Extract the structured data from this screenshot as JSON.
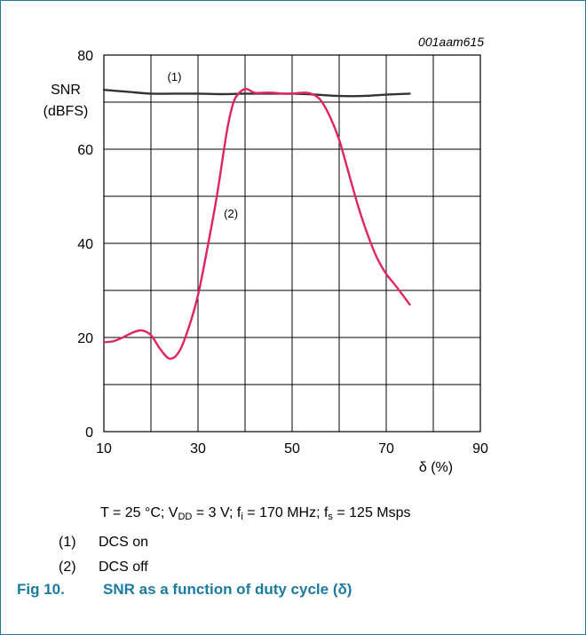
{
  "chart_data": {
    "type": "line",
    "id_label": "001aam615",
    "ylabel_line1": "SNR",
    "ylabel_line2": "(dBFS)",
    "xlabel": "δ (%)",
    "xlim": [
      10,
      90
    ],
    "ylim": [
      0,
      80
    ],
    "x_ticks": [
      10,
      30,
      50,
      70,
      90
    ],
    "y_ticks": [
      0,
      20,
      40,
      60,
      80
    ],
    "grid": true,
    "series": [
      {
        "name": "(1)",
        "color": "#333333",
        "x": [
          10,
          15,
          20,
          25,
          30,
          35,
          40,
          45,
          50,
          55,
          60,
          65,
          70,
          75
        ],
        "y": [
          72.6,
          72.2,
          71.8,
          71.8,
          71.8,
          71.7,
          71.8,
          71.8,
          71.8,
          71.6,
          71.3,
          71.3,
          71.6,
          71.8
        ]
      },
      {
        "name": "(2)",
        "color": "#e0245e",
        "x": [
          10,
          12,
          14,
          16,
          18,
          20,
          22,
          24,
          26,
          28,
          30,
          32,
          34,
          36,
          37,
          38,
          40,
          42,
          44,
          46,
          48,
          50,
          52,
          54,
          56,
          58,
          60,
          62,
          64,
          66,
          68,
          70,
          72,
          75
        ],
        "y": [
          19,
          19.2,
          20,
          21,
          21.5,
          20.5,
          17.5,
          15.5,
          17,
          22,
          29,
          39,
          50,
          63,
          68,
          71,
          72.8,
          72,
          72,
          72,
          71.8,
          71.8,
          72,
          71.8,
          70.5,
          67,
          62,
          55,
          48,
          42,
          37,
          33.5,
          31,
          27
        ]
      }
    ],
    "annotations": [
      {
        "text": "(1)",
        "x": 25,
        "y": 74.5
      },
      {
        "text": "(2)",
        "x": 37,
        "y": 45.5
      }
    ]
  },
  "conditions": {
    "t": "T = 25 °C; V",
    "vdd_sub": "DD",
    "v_rest": " = 3 V; f",
    "fi_sub": "i",
    "f_rest": " = 170 MHz; f",
    "fs_sub": "s",
    "end": " = 125 Msps"
  },
  "notes": [
    {
      "num": "(1)",
      "text": "DCS on"
    },
    {
      "num": "(2)",
      "text": "DCS off"
    }
  ],
  "caption": {
    "label": "Fig 10.",
    "text": "SNR as a function of duty cycle (δ)"
  },
  "colors": {
    "accent": "#1b7aa0",
    "grid": "#000000"
  }
}
